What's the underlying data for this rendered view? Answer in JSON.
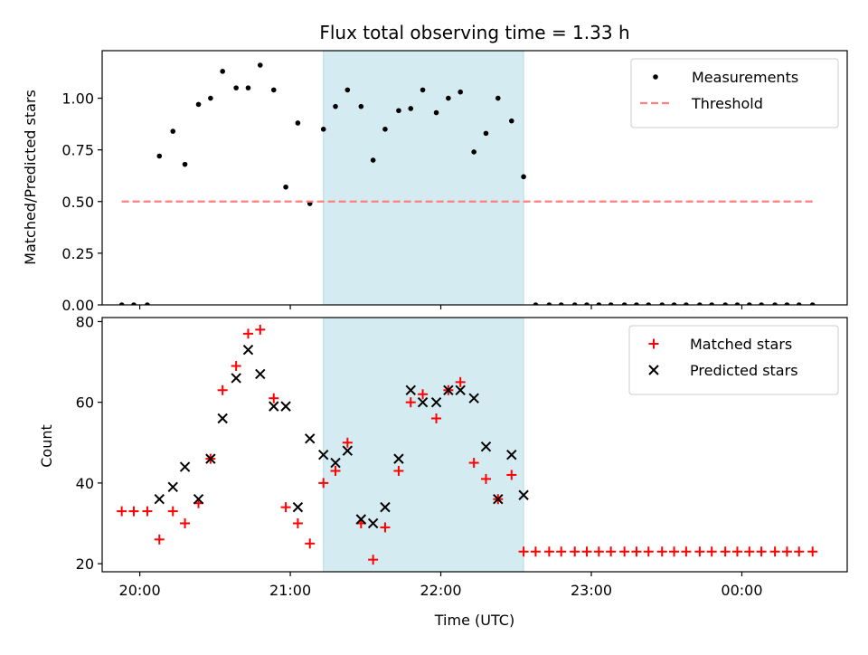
{
  "chart_data": [
    {
      "type": "scatter",
      "title": "Flux total observing time = 1.33 h",
      "xlabel": "",
      "ylabel": "Matched/Predicted stars",
      "xlim": [
        19.75,
        24.7
      ],
      "ylim": [
        0,
        1.23
      ],
      "yticks": [
        0.0,
        0.25,
        0.5,
        0.75,
        1.0
      ],
      "ytick_labels": [
        "0.00",
        "0.25",
        "0.50",
        "0.75",
        "1.00"
      ],
      "xticks": [
        20,
        21,
        22,
        23,
        24
      ],
      "shaded_range": [
        21.22,
        22.55
      ],
      "shaded_color": "#d4ebf1",
      "legend": {
        "position": "top-right",
        "entries": [
          "Measurements",
          "Threshold"
        ]
      },
      "series": [
        {
          "name": "Measurements",
          "color": "#000000",
          "marker": "dot",
          "x": [
            19.88,
            19.96,
            20.05,
            20.13,
            20.22,
            20.3,
            20.39,
            20.47,
            20.55,
            20.64,
            20.72,
            20.8,
            20.89,
            20.97,
            21.05,
            21.13,
            21.22,
            21.3,
            21.38,
            21.47,
            21.55,
            21.63,
            21.72,
            21.8,
            21.88,
            21.97,
            22.05,
            22.13,
            22.22,
            22.3,
            22.38,
            22.47,
            22.55,
            22.63,
            22.72,
            22.8,
            22.89,
            22.97,
            23.05,
            23.13,
            23.22,
            23.3,
            23.38,
            23.47,
            23.55,
            23.63,
            23.72,
            23.8,
            23.89,
            23.97,
            24.05,
            24.13,
            24.22,
            24.3,
            24.38,
            24.47
          ],
          "y": [
            0,
            0,
            0,
            0.72,
            0.84,
            0.68,
            0.97,
            1.0,
            1.13,
            1.05,
            1.05,
            1.16,
            1.04,
            0.57,
            0.88,
            0.49,
            0.85,
            0.96,
            1.04,
            0.96,
            0.7,
            0.85,
            0.94,
            0.95,
            1.04,
            0.93,
            1.0,
            1.03,
            0.74,
            0.83,
            1.0,
            0.89,
            0.62,
            0,
            0,
            0,
            0,
            0,
            0,
            0,
            0,
            0,
            0,
            0,
            0,
            0,
            0,
            0,
            0,
            0,
            0,
            0,
            0,
            0,
            0,
            0
          ]
        },
        {
          "name": "Threshold",
          "color": "#ff7f7f",
          "style": "dashed",
          "x": [
            19.88,
            24.47
          ],
          "y": [
            0.5,
            0.5
          ]
        }
      ]
    },
    {
      "type": "scatter",
      "title": "",
      "xlabel": "Time (UTC)",
      "ylabel": "Count",
      "xlim": [
        19.75,
        24.7
      ],
      "ylim": [
        18,
        81
      ],
      "yticks": [
        20,
        40,
        60,
        80
      ],
      "ytick_labels": [
        "20",
        "40",
        "60",
        "80"
      ],
      "xticks": [
        20,
        21,
        22,
        23,
        24
      ],
      "xtick_labels": [
        "20:00",
        "21:00",
        "22:00",
        "23:00",
        "00:00"
      ],
      "shaded_range": [
        21.22,
        22.55
      ],
      "shaded_color": "#d4ebf1",
      "legend": {
        "position": "top-right",
        "entries": [
          "Matched stars",
          "Predicted stars"
        ]
      },
      "series": [
        {
          "name": "Matched stars",
          "color": "#ff0000",
          "marker": "plus",
          "x": [
            19.88,
            19.96,
            20.05,
            20.13,
            20.22,
            20.3,
            20.39,
            20.47,
            20.55,
            20.64,
            20.72,
            20.8,
            20.89,
            20.97,
            21.05,
            21.13,
            21.22,
            21.3,
            21.38,
            21.47,
            21.55,
            21.63,
            21.72,
            21.8,
            21.88,
            21.97,
            22.05,
            22.13,
            22.22,
            22.3,
            22.38,
            22.47,
            22.55,
            22.63,
            22.72,
            22.8,
            22.89,
            22.97,
            23.05,
            23.13,
            23.22,
            23.3,
            23.38,
            23.47,
            23.55,
            23.63,
            23.72,
            23.8,
            23.89,
            23.97,
            24.05,
            24.13,
            24.22,
            24.3,
            24.38,
            24.47
          ],
          "y": [
            33,
            33,
            33,
            26,
            33,
            30,
            35,
            46,
            63,
            69,
            77,
            78,
            61,
            34,
            30,
            25,
            40,
            43,
            50,
            30,
            21,
            29,
            43,
            60,
            62,
            56,
            63,
            65,
            45,
            41,
            36,
            42,
            23,
            23,
            23,
            23,
            23,
            23,
            23,
            23,
            23,
            23,
            23,
            23,
            23,
            23,
            23,
            23,
            23,
            23,
            23,
            23,
            23,
            23,
            23,
            23
          ]
        },
        {
          "name": "Predicted stars",
          "color": "#000000",
          "marker": "x",
          "x": [
            20.13,
            20.22,
            20.3,
            20.39,
            20.47,
            20.55,
            20.64,
            20.72,
            20.8,
            20.89,
            20.97,
            21.05,
            21.13,
            21.22,
            21.3,
            21.38,
            21.47,
            21.55,
            21.63,
            21.72,
            21.8,
            21.88,
            21.97,
            22.05,
            22.13,
            22.22,
            22.3,
            22.38,
            22.47,
            22.55
          ],
          "y": [
            36,
            39,
            44,
            36,
            46,
            56,
            66,
            73,
            67,
            59,
            59,
            34,
            51,
            47,
            45,
            48,
            31,
            30,
            34,
            46,
            63,
            60,
            60,
            63,
            63,
            61,
            49,
            36,
            47,
            37
          ]
        }
      ]
    }
  ]
}
